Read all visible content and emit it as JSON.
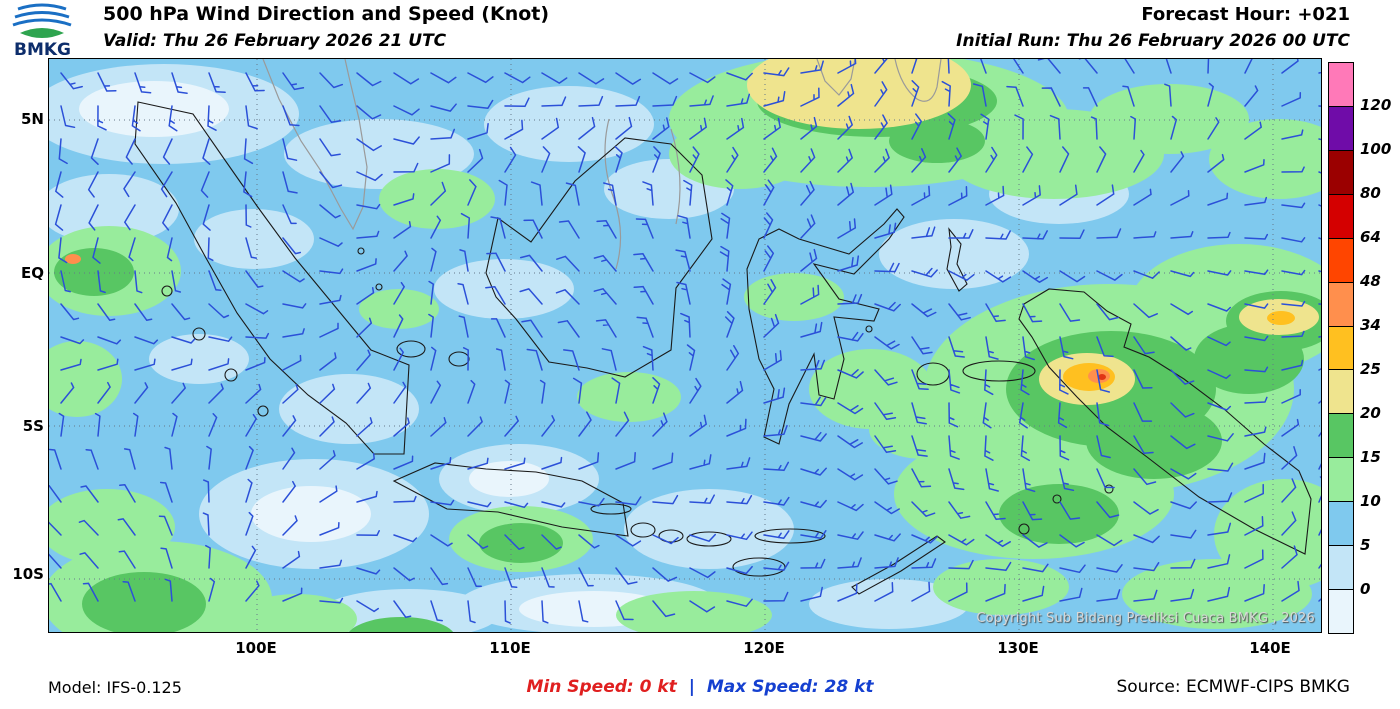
{
  "header": {
    "logo_text": "BMKG",
    "title": "500 hPa Wind Direction and Speed (Knot)",
    "forecast_hour": "Forecast Hour: +021",
    "valid_time": "Valid: Thu 26 February 2026 21 UTC",
    "initial_run": "Initial Run: Thu 26 February 2026 00 UTC"
  },
  "map": {
    "lat_labels": [
      "5N",
      "EQ",
      "5S",
      "10S"
    ],
    "lon_labels": [
      "100E",
      "110E",
      "120E",
      "130E",
      "140E"
    ],
    "copyright": "Copyright Sub Bidang Prediksi Cuaca BMKG , 2026",
    "barb_color": "#2b50d8"
  },
  "colorbar": {
    "unit": "Knot",
    "tick_labels": [
      "120",
      "100",
      "80",
      "64",
      "48",
      "34",
      "25",
      "20",
      "15",
      "10",
      "5",
      "0"
    ],
    "segment_colors": [
      "#ff79b8",
      "#6f0ca8",
      "#9b0000",
      "#d40000",
      "#ff4500",
      "#ff8f4d",
      "#ffc020",
      "#efe48e",
      "#58c663",
      "#98ec9c",
      "#7fc9ee",
      "#c3e5f7",
      "#e9f5fc"
    ]
  },
  "footer": {
    "model": "Model: IFS-0.125",
    "min_speed": "Min Speed:  0 kt",
    "separator": "|",
    "max_speed": "Max Speed:  28 kt",
    "source": "Source: ECMWF-CIPS BMKG"
  }
}
